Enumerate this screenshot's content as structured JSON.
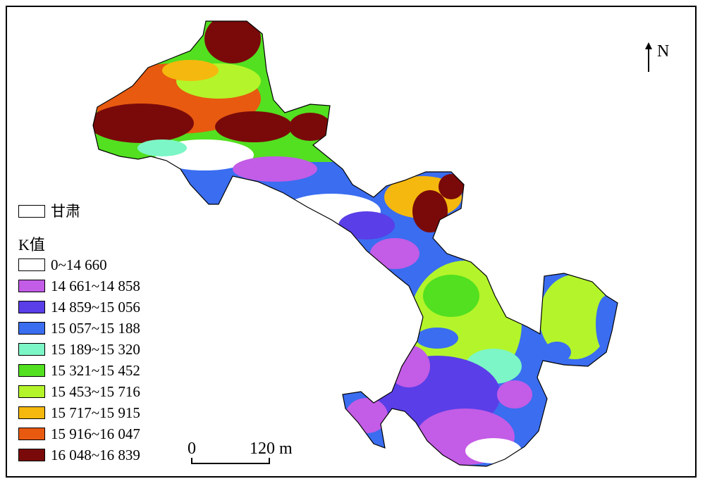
{
  "map": {
    "region_legend_label": "甘肃",
    "value_legend_title": "K值",
    "classes": [
      {
        "range": "0~14 660",
        "color": "#ffffff"
      },
      {
        "range": "14 661~14 858",
        "color": "#c35ce6"
      },
      {
        "range": "14 859~15 056",
        "color": "#5a3ee8"
      },
      {
        "range": "15 057~15 188",
        "color": "#3a6df0"
      },
      {
        "range": "15 189~15 320",
        "color": "#7cf6c6"
      },
      {
        "range": "15 321~15 452",
        "color": "#52e020"
      },
      {
        "range": "15 453~15 716",
        "color": "#b3f52a"
      },
      {
        "range": "15 717~15 915",
        "color": "#f5b80e"
      },
      {
        "range": "15 916~16 047",
        "color": "#e85a10"
      },
      {
        "range": "16 048~16 839",
        "color": "#7a0a0a"
      }
    ],
    "north_label": "N",
    "scale": {
      "start": "0",
      "end": "120 m"
    }
  }
}
